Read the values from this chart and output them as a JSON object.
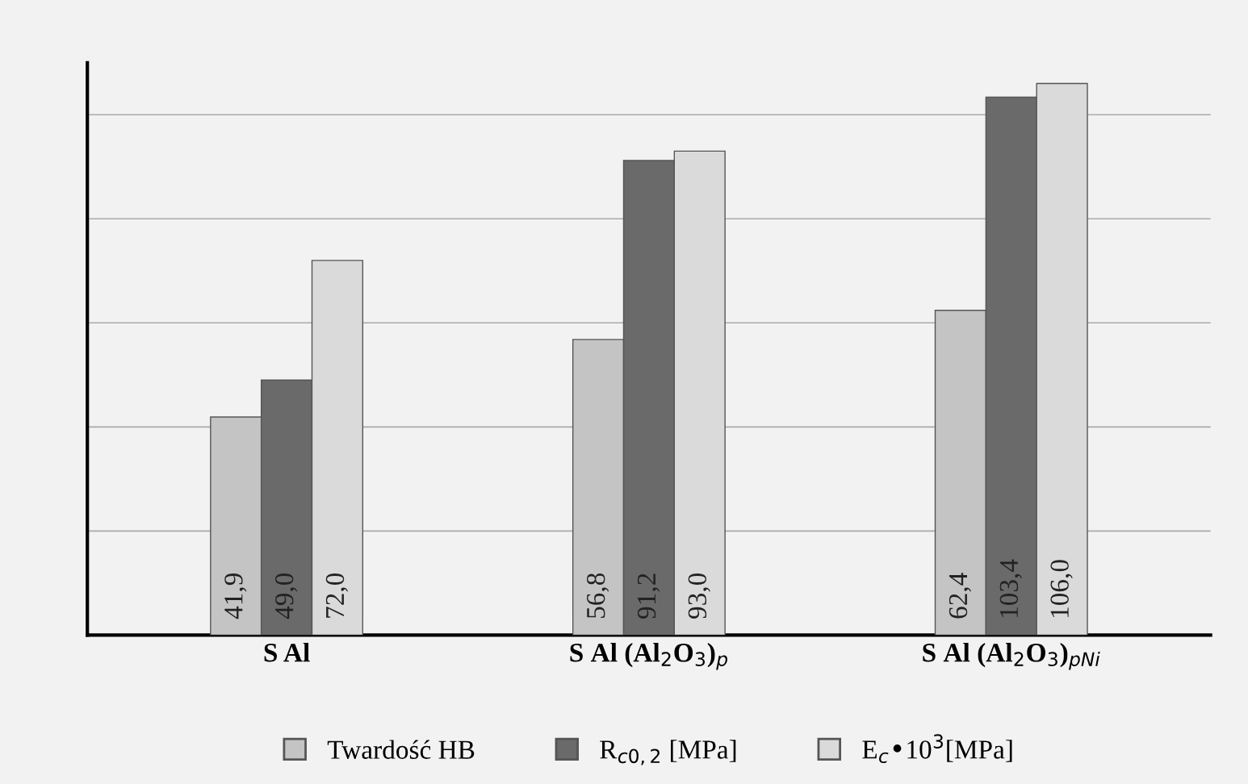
{
  "chart_data": {
    "type": "bar",
    "categories": [
      "S Al",
      "S Al (Al$_{2}$O$_{3}$)$_{p}$",
      "S Al (Al$_{2}$O$_{3}$)$_{pNi}$"
    ],
    "series": [
      {
        "name": "Twardość HB",
        "color": "#c4c4c4",
        "values": [
          41.9,
          56.8,
          62.4
        ],
        "value_labels": [
          "41,9",
          "56,8",
          "62,4"
        ]
      },
      {
        "name": "R$_{c0,2}$ [MPa]",
        "color": "#6a6a6a",
        "values": [
          49.0,
          91.2,
          103.4
        ],
        "value_labels": [
          "49,0",
          "91,2",
          "103,4"
        ]
      },
      {
        "name": "E$_{c}$•10$^{3}$[MPa]",
        "color": "#dadada",
        "values": [
          72.0,
          93.0,
          106.0
        ],
        "value_labels": [
          "72,0",
          "93,0",
          "106,0"
        ]
      }
    ],
    "ylim": [
      0,
      110
    ],
    "yticks": [
      {
        "value": 0,
        "label": null
      },
      {
        "value": 20,
        "label": null
      },
      {
        "value": 40,
        "label": null
      },
      {
        "value": 60,
        "label": null
      },
      {
        "value": 80,
        "label": null
      },
      {
        "value": 100,
        "label": null
      }
    ],
    "grid": "y",
    "legend": "bottom",
    "tick_labels": "x"
  }
}
